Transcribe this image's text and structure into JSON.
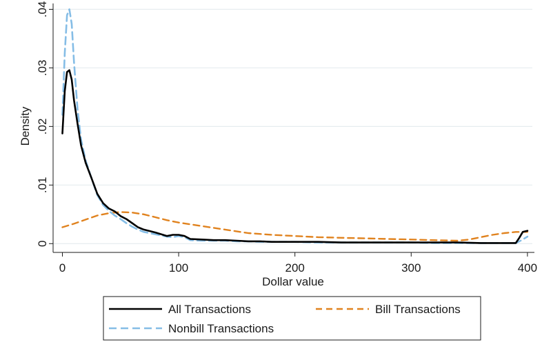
{
  "chart_data": {
    "type": "line",
    "title": "",
    "xlabel": "Dollar value",
    "ylabel": "Density",
    "xlim": [
      -8,
      406
    ],
    "ylim": [
      -0.0015,
      0.041
    ],
    "xticks": [
      0,
      100,
      200,
      300,
      400
    ],
    "xtick_labels": [
      "0",
      "100",
      "200",
      "300",
      "400"
    ],
    "yticks": [
      0,
      0.01,
      0.02,
      0.03,
      0.04
    ],
    "ytick_labels": [
      "0",
      ".01",
      ".02",
      ".03",
      ".04"
    ],
    "grid": "horizontal",
    "legend_position": "bottom",
    "series": [
      {
        "name": "All Transactions",
        "color": "#000000",
        "style": "solid",
        "x": [
          0,
          2,
          4,
          6,
          8,
          10,
          13,
          16,
          20,
          25,
          30,
          35,
          40,
          45,
          50,
          55,
          60,
          65,
          70,
          80,
          90,
          95,
          100,
          105,
          110,
          120,
          130,
          140,
          150,
          160,
          170,
          180,
          190,
          200,
          220,
          240,
          260,
          280,
          300,
          320,
          340,
          360,
          380,
          390,
          393,
          396,
          400
        ],
        "y": [
          0.0188,
          0.026,
          0.0293,
          0.0296,
          0.028,
          0.0245,
          0.0205,
          0.0168,
          0.0138,
          0.0112,
          0.0085,
          0.0069,
          0.006,
          0.0055,
          0.0047,
          0.0042,
          0.0035,
          0.0028,
          0.0024,
          0.0019,
          0.0013,
          0.0015,
          0.0015,
          0.0013,
          0.0008,
          0.0007,
          0.0006,
          0.0006,
          0.0005,
          0.0004,
          0.0004,
          0.0003,
          0.0003,
          0.0003,
          0.0003,
          0.0002,
          0.0002,
          0.0002,
          0.0002,
          0.0002,
          0.0002,
          0.0001,
          0.0001,
          0.0001,
          0.001,
          0.002,
          0.0022
        ]
      },
      {
        "name": "Bill Transactions",
        "color": "#e0821e",
        "style": "dashed",
        "x": [
          0,
          10,
          20,
          30,
          40,
          50,
          60,
          70,
          80,
          90,
          100,
          120,
          140,
          160,
          180,
          200,
          220,
          240,
          260,
          280,
          300,
          320,
          340,
          350,
          360,
          370,
          380,
          390,
          400
        ],
        "y": [
          0.0028,
          0.0034,
          0.0041,
          0.0048,
          0.0052,
          0.0054,
          0.0053,
          0.005,
          0.0045,
          0.004,
          0.0036,
          0.003,
          0.0024,
          0.0018,
          0.0015,
          0.0013,
          0.0011,
          0.001,
          0.0009,
          0.0008,
          0.0007,
          0.0006,
          0.0005,
          0.0007,
          0.0011,
          0.0015,
          0.0018,
          0.002,
          0.002
        ]
      },
      {
        "name": "Nonbill Transactions",
        "color": "#85bde6",
        "style": "dashed",
        "x": [
          0,
          2,
          4,
          6,
          8,
          10,
          13,
          16,
          20,
          25,
          30,
          35,
          40,
          45,
          50,
          55,
          60,
          65,
          70,
          80,
          90,
          95,
          100,
          105,
          110,
          120,
          130,
          140,
          150,
          160,
          170,
          180,
          200,
          220,
          240,
          260,
          280,
          300,
          320,
          340,
          360,
          380,
          390,
          395,
          400
        ],
        "y": [
          0.022,
          0.0325,
          0.039,
          0.04,
          0.0375,
          0.031,
          0.023,
          0.0178,
          0.0142,
          0.0112,
          0.0083,
          0.0066,
          0.0056,
          0.0048,
          0.0042,
          0.0035,
          0.0029,
          0.0024,
          0.002,
          0.0016,
          0.0012,
          0.0011,
          0.0013,
          0.0011,
          0.0006,
          0.0005,
          0.0005,
          0.0005,
          0.0004,
          0.0004,
          0.0003,
          0.0003,
          0.0003,
          0.0002,
          0.0002,
          0.0002,
          0.0002,
          0.0002,
          0.0001,
          0.0001,
          0.0001,
          0.0001,
          0.0001,
          0.0006,
          0.0012
        ]
      }
    ]
  }
}
